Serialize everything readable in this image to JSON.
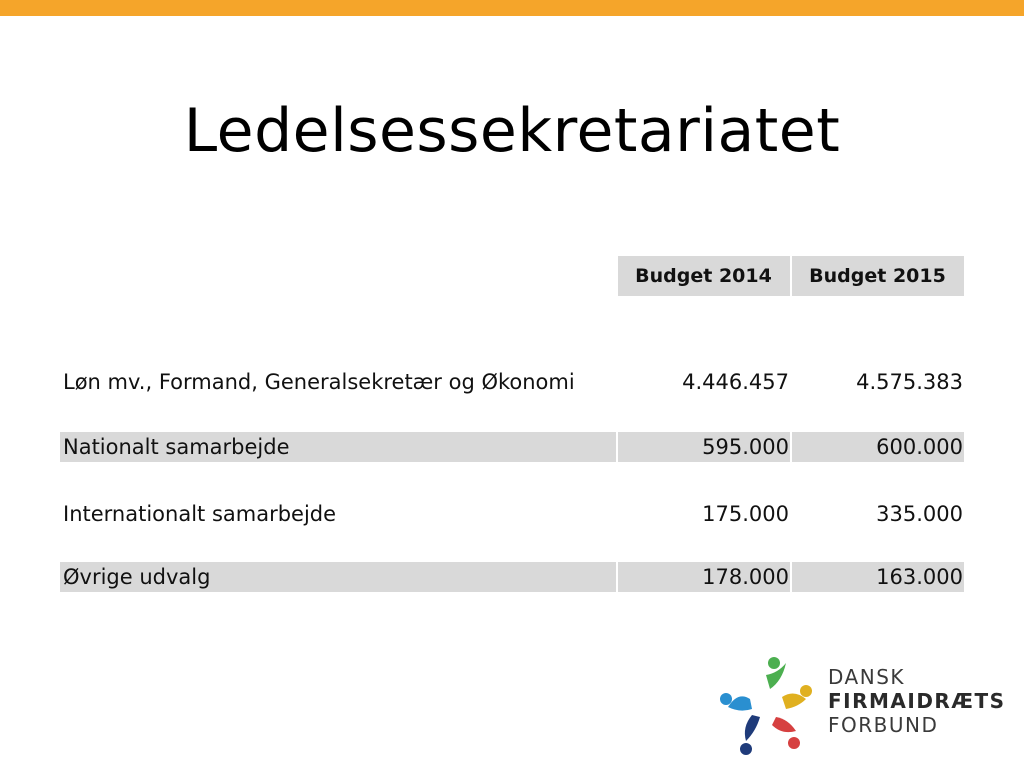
{
  "slide": {
    "title": "Ledelsessekretariatet"
  },
  "table": {
    "headers": [
      "Budget 2014",
      "Budget 2015"
    ],
    "rows": [
      {
        "label": "Løn mv., Formand, Generalsekretær og Økonomi",
        "b2014": "4.446.457",
        "b2015": "4.575.383"
      },
      {
        "label": "Nationalt samarbejde",
        "b2014": "595.000",
        "b2015": "600.000"
      },
      {
        "label": "Internationalt samarbejde",
        "b2014": "175.000",
        "b2015": "335.000"
      },
      {
        "label": "Øvrige udvalg",
        "b2014": "178.000",
        "b2015": "163.000"
      }
    ]
  },
  "logo": {
    "line1": "DANSK",
    "line2": "FIRMAIDRÆTS",
    "line3": "FORBUND"
  },
  "colors": {
    "accent_bar": "#f5a52a",
    "row_shade": "#d9d9d9"
  }
}
